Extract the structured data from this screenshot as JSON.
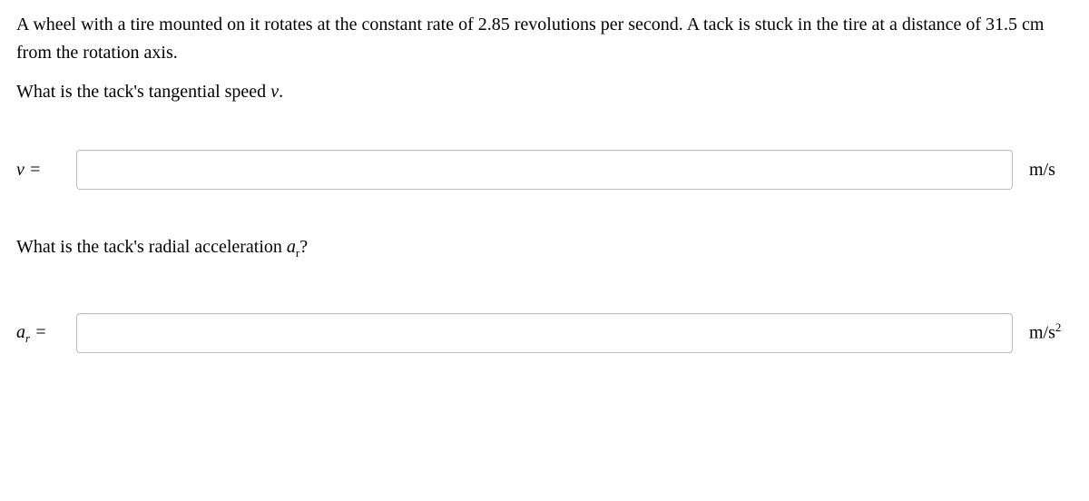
{
  "problem": {
    "intro": "A wheel with a tire mounted on it rotates at the constant rate of 2.85 revolutions per second. A tack is stuck in the tire at a distance of 31.5 cm from the rotation axis."
  },
  "q1": {
    "prompt_prefix": "What is the tack's tangential speed ",
    "symbol": "v",
    "prompt_suffix": ".",
    "label_symbol": "v",
    "label_eq": " =",
    "unit": "m/s",
    "value": ""
  },
  "q2": {
    "prompt_prefix": "What is the tack's radial acceleration ",
    "symbol": "a",
    "symbol_sub": "r",
    "prompt_suffix": "?",
    "label_symbol": "a",
    "label_sub": "r",
    "label_eq": " =",
    "unit_base": "m/s",
    "unit_exp": "2",
    "value": ""
  }
}
